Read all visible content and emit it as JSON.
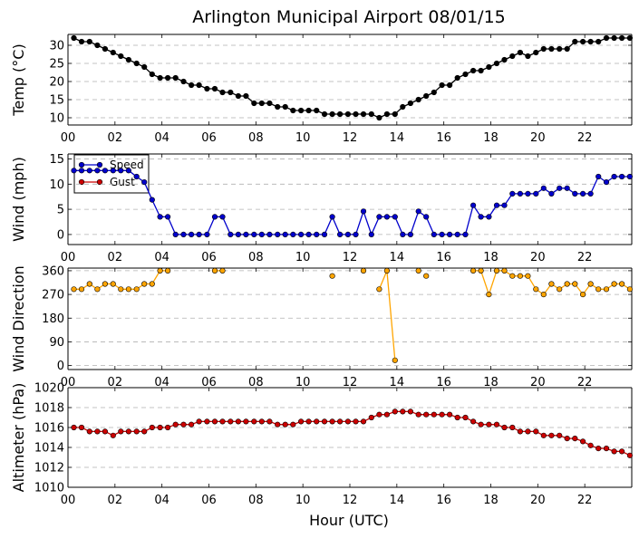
{
  "title": "Arlington Municipal Airport 08/01/15",
  "xlabel": "Hour (UTC)",
  "hour_ticks": [
    "00",
    "02",
    "04",
    "06",
    "08",
    "10",
    "12",
    "14",
    "16",
    "18",
    "20",
    "22"
  ],
  "chart_data": [
    {
      "type": "line",
      "name": "temp",
      "ylabel": "Temp (°C)",
      "ylim": [
        8,
        33
      ],
      "yticks": [
        10,
        15,
        20,
        25,
        30
      ],
      "xlim": [
        0,
        24
      ],
      "series": [
        {
          "name": "Temp",
          "color": "#000000",
          "x": [
            0.25,
            0.58,
            0.92,
            1.25,
            1.58,
            1.92,
            2.25,
            2.58,
            2.92,
            3.25,
            3.58,
            3.92,
            4.25,
            4.58,
            4.92,
            5.25,
            5.58,
            5.92,
            6.25,
            6.58,
            6.92,
            7.25,
            7.58,
            7.92,
            8.25,
            8.58,
            8.92,
            9.25,
            9.58,
            9.92,
            10.25,
            10.58,
            10.92,
            11.25,
            11.58,
            11.92,
            12.25,
            12.58,
            12.92,
            13.25,
            13.58,
            13.92,
            14.25,
            14.58,
            14.92,
            15.25,
            15.58,
            15.92,
            16.25,
            16.58,
            16.92,
            17.25,
            17.58,
            17.92,
            18.25,
            18.58,
            18.92,
            19.25,
            19.58,
            19.92,
            20.25,
            20.58,
            20.92,
            21.25,
            21.58,
            21.92,
            22.25,
            22.58,
            22.92,
            23.25,
            23.58,
            23.92
          ],
          "values": [
            32,
            31,
            31,
            30,
            29,
            28,
            27,
            26,
            25,
            24,
            22,
            21,
            21,
            21,
            20,
            19,
            19,
            18,
            18,
            17,
            17,
            16,
            16,
            14,
            14,
            14,
            13,
            13,
            12,
            12,
            12,
            12,
            11,
            11,
            11,
            11,
            11,
            11,
            11,
            10,
            11,
            11,
            13,
            14,
            15,
            16,
            17,
            19,
            19,
            21,
            22,
            23,
            23,
            24,
            25,
            26,
            27,
            28,
            27,
            28,
            29,
            29,
            29,
            29,
            31,
            31,
            31,
            31,
            32,
            32,
            32,
            32
          ]
        }
      ]
    },
    {
      "type": "line",
      "name": "wind",
      "ylabel": "Wind (mph)",
      "ylim": [
        -2,
        16
      ],
      "yticks": [
        0,
        5,
        10,
        15
      ],
      "xlim": [
        0,
        24
      ],
      "legend": "top-left",
      "series": [
        {
          "name": "Speed",
          "color": "#0000cc",
          "x": [
            0.25,
            0.58,
            0.92,
            1.25,
            1.58,
            1.92,
            2.25,
            2.58,
            2.92,
            3.25,
            3.58,
            3.92,
            4.25,
            4.58,
            4.92,
            5.25,
            5.58,
            5.92,
            6.25,
            6.58,
            6.92,
            7.25,
            7.58,
            7.92,
            8.25,
            8.58,
            8.92,
            9.25,
            9.58,
            9.92,
            10.25,
            10.58,
            10.92,
            11.25,
            11.58,
            11.92,
            12.25,
            12.58,
            12.92,
            13.25,
            13.58,
            13.92,
            14.25,
            14.58,
            14.92,
            15.25,
            15.58,
            15.92,
            16.25,
            16.58,
            16.92,
            17.25,
            17.58,
            17.92,
            18.25,
            18.58,
            18.92,
            19.25,
            19.58,
            19.92,
            20.25,
            20.58,
            20.92,
            21.25,
            21.58,
            21.92,
            22.25,
            22.58,
            22.92,
            23.25,
            23.58,
            23.92
          ],
          "values": [
            12.7,
            12.7,
            12.7,
            12.7,
            12.7,
            12.7,
            12.7,
            12.7,
            11.5,
            10.4,
            6.9,
            3.5,
            3.5,
            0,
            0,
            0,
            0,
            0,
            3.5,
            3.5,
            0,
            0,
            0,
            0,
            0,
            0,
            0,
            0,
            0,
            0,
            0,
            0,
            0,
            3.5,
            0,
            0,
            0,
            4.6,
            0,
            3.5,
            3.5,
            3.5,
            0,
            0,
            4.6,
            3.5,
            0,
            0,
            0,
            0,
            0,
            5.8,
            3.5,
            3.5,
            5.8,
            5.8,
            8.1,
            8.1,
            8.1,
            8.1,
            9.2,
            8.1,
            9.2,
            9.2,
            8.1,
            8.1,
            8.1,
            11.5,
            10.4,
            11.5,
            11.5,
            11.5
          ]
        },
        {
          "name": "Gust",
          "color": "#cc0000",
          "x": [],
          "values": []
        }
      ]
    },
    {
      "type": "line",
      "name": "wind-direction",
      "ylabel": "Wind Direction",
      "ylim": [
        -15,
        370
      ],
      "yticks": [
        0,
        90,
        180,
        270,
        360
      ],
      "xlim": [
        0,
        24
      ],
      "series": [
        {
          "name": "Direction",
          "color": "#ffa500",
          "x": [
            0.25,
            0.58,
            0.92,
            1.25,
            1.58,
            1.92,
            2.25,
            2.58,
            2.92,
            3.25,
            3.58,
            3.92,
            4.25,
            6.25,
            6.58,
            11.25,
            12.58,
            13.25,
            13.58,
            13.92,
            14.92,
            15.25,
            17.25,
            17.58,
            17.92,
            18.25,
            18.58,
            18.92,
            19.25,
            19.58,
            19.92,
            20.25,
            20.58,
            20.92,
            21.25,
            21.58,
            21.92,
            22.25,
            22.58,
            22.92,
            23.25,
            23.58,
            23.92
          ],
          "values": [
            290,
            290,
            310,
            290,
            310,
            310,
            290,
            290,
            290,
            310,
            310,
            360,
            360,
            360,
            360,
            340,
            360,
            290,
            360,
            20,
            360,
            340,
            360,
            360,
            270,
            360,
            360,
            340,
            340,
            340,
            290,
            270,
            310,
            290,
            310,
            310,
            270,
            310,
            290,
            290,
            310,
            310,
            290
          ],
          "segments": [
            [
              0,
              12
            ],
            [
              13,
              14
            ],
            [
              17,
              19
            ],
            [
              22,
              42
            ]
          ]
        }
      ]
    },
    {
      "type": "line",
      "name": "altimeter",
      "ylabel": "Altimeter (hPa)",
      "ylim": [
        1010,
        1020
      ],
      "yticks": [
        1010,
        1012,
        1014,
        1016,
        1018,
        1020
      ],
      "xlim": [
        0,
        24
      ],
      "series": [
        {
          "name": "Altimeter",
          "color": "#cc0000",
          "x": [
            0.25,
            0.58,
            0.92,
            1.25,
            1.58,
            1.92,
            2.25,
            2.58,
            2.92,
            3.25,
            3.58,
            3.92,
            4.25,
            4.58,
            4.92,
            5.25,
            5.58,
            5.92,
            6.25,
            6.58,
            6.92,
            7.25,
            7.58,
            7.92,
            8.25,
            8.58,
            8.92,
            9.25,
            9.58,
            9.92,
            10.25,
            10.58,
            10.92,
            11.25,
            11.58,
            11.92,
            12.25,
            12.58,
            12.92,
            13.25,
            13.58,
            13.92,
            14.25,
            14.58,
            14.92,
            15.25,
            15.58,
            15.92,
            16.25,
            16.58,
            16.92,
            17.25,
            17.58,
            17.92,
            18.25,
            18.58,
            18.92,
            19.25,
            19.58,
            19.92,
            20.25,
            20.58,
            20.92,
            21.25,
            21.58,
            21.92,
            22.25,
            22.58,
            22.92,
            23.25,
            23.58,
            23.92
          ],
          "values": [
            1016,
            1016,
            1015.6,
            1015.6,
            1015.6,
            1015.2,
            1015.6,
            1015.6,
            1015.6,
            1015.6,
            1016,
            1016,
            1016,
            1016.3,
            1016.3,
            1016.3,
            1016.6,
            1016.6,
            1016.6,
            1016.6,
            1016.6,
            1016.6,
            1016.6,
            1016.6,
            1016.6,
            1016.6,
            1016.3,
            1016.3,
            1016.3,
            1016.6,
            1016.6,
            1016.6,
            1016.6,
            1016.6,
            1016.6,
            1016.6,
            1016.6,
            1016.6,
            1017,
            1017.3,
            1017.3,
            1017.6,
            1017.6,
            1017.6,
            1017.3,
            1017.3,
            1017.3,
            1017.3,
            1017.3,
            1017,
            1017,
            1016.6,
            1016.3,
            1016.3,
            1016.3,
            1016,
            1016,
            1015.6,
            1015.6,
            1015.6,
            1015.2,
            1015.2,
            1015.2,
            1014.9,
            1014.9,
            1014.6,
            1014.2,
            1013.9,
            1013.9,
            1013.6,
            1013.6,
            1013.2
          ]
        }
      ]
    }
  ]
}
